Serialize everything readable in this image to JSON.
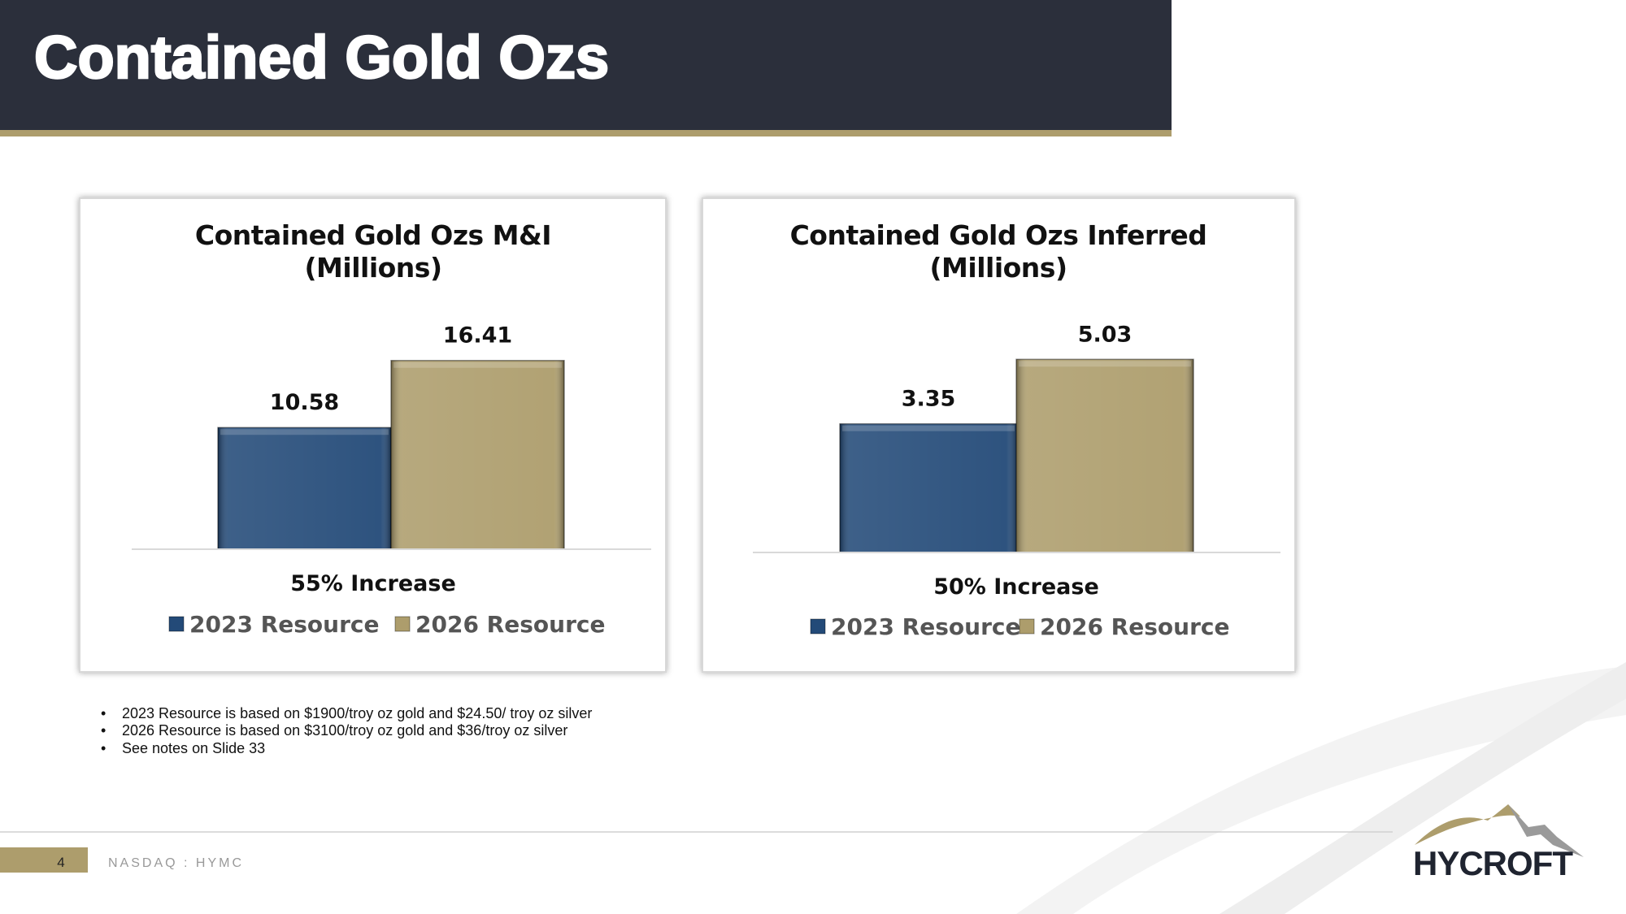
{
  "header": {
    "title": "Contained Gold Ozs"
  },
  "chart_data": [
    {
      "type": "bar",
      "title": "Contained Gold Ozs M&I",
      "subtitle": "(Millions)",
      "annotation": "55% Increase",
      "series": [
        {
          "name": "2023 Resource",
          "color": "#234a78",
          "values": [
            10.58
          ]
        },
        {
          "name": "2026 Resource",
          "color": "#ad9d6c",
          "values": [
            16.41
          ]
        }
      ],
      "ylim": [
        0,
        20.7
      ],
      "legend": "bottom"
    },
    {
      "type": "bar",
      "title": "Contained Gold Ozs Inferred",
      "subtitle": "(Millions)",
      "annotation": "50% Increase",
      "series": [
        {
          "name": "2023 Resource",
          "color": "#234a78",
          "values": [
            3.35
          ]
        },
        {
          "name": "2026 Resource",
          "color": "#ad9d6c",
          "values": [
            5.03
          ]
        }
      ],
      "ylim": [
        0,
        6.2
      ],
      "legend": "bottom"
    }
  ],
  "notes": [
    "2023 Resource is based on $1900/troy oz gold and $24.50/ troy oz silver",
    "2026 Resource is based on $3100/troy oz gold and $36/troy oz silver",
    "See notes on Slide 33"
  ],
  "footer": {
    "page": "4",
    "ticker": "NASDAQ : HYMC",
    "logo": "HYCROFT"
  }
}
